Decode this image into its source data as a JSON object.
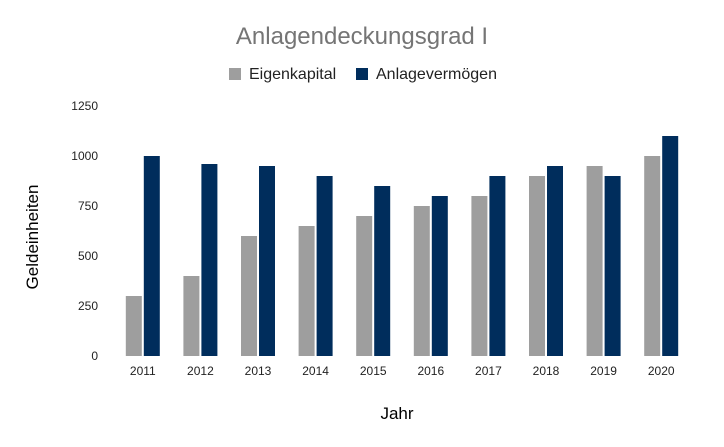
{
  "chart_data": {
    "type": "bar",
    "title": "Anlagendeckungsgrad I",
    "xlabel": "Jahr",
    "ylabel": "Geldeinheiten",
    "categories": [
      "2011",
      "2012",
      "2013",
      "2014",
      "2015",
      "2016",
      "2017",
      "2018",
      "2019",
      "2020"
    ],
    "series": [
      {
        "name": "Eigenkapital",
        "color": "#9e9e9e",
        "values": [
          300,
          400,
          600,
          650,
          700,
          750,
          800,
          900,
          950,
          1000
        ]
      },
      {
        "name": "Anlagevermögen",
        "color": "#002d5c",
        "values": [
          1000,
          960,
          950,
          900,
          850,
          800,
          900,
          950,
          900,
          1100
        ]
      }
    ],
    "ylim": [
      0,
      1250
    ],
    "yticks": [
      0,
      250,
      500,
      750,
      1000,
      1250
    ],
    "grid": false,
    "legend": "top-center"
  }
}
